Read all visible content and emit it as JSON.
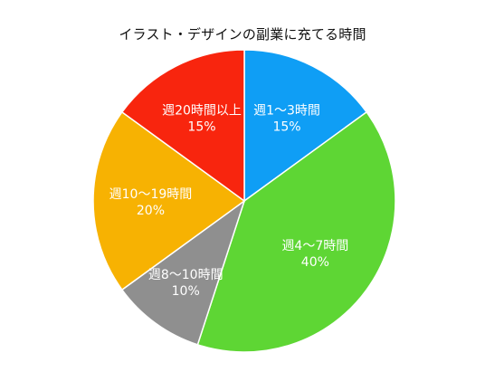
{
  "chart_data": {
    "type": "pie",
    "title": "イラスト・デザインの副業に充てる時間",
    "slices": [
      {
        "label": "週1〜3時間",
        "percent_label": "15%",
        "value": 15,
        "color": "#0f9ef5"
      },
      {
        "label": "週4〜7時間",
        "percent_label": "40%",
        "value": 40,
        "color": "#5ed634"
      },
      {
        "label": "週8〜10時間",
        "percent_label": "10%",
        "value": 10,
        "color": "#8f8f8f"
      },
      {
        "label": "週10〜19時間",
        "percent_label": "20%",
        "value": 20,
        "color": "#f7b202"
      },
      {
        "label": "週20時間以上",
        "percent_label": "15%",
        "value": 15,
        "color": "#f8250e"
      }
    ],
    "start_angle": "12 o'clock",
    "direction": "clockwise",
    "legend": "none"
  }
}
